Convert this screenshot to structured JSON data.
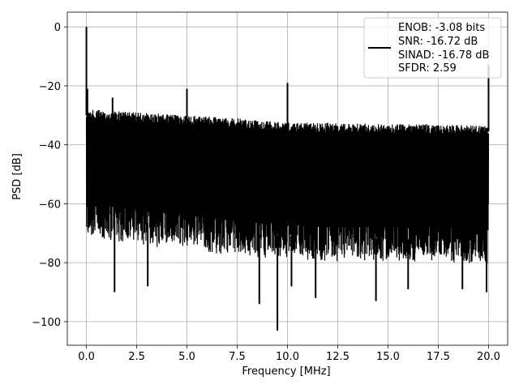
{
  "chart_data": {
    "type": "line",
    "title": "",
    "xlabel": "Frequency [MHz]",
    "ylabel": "PSD [dB]",
    "xlim": [
      -0.95,
      20.95
    ],
    "ylim": [
      -108,
      5
    ],
    "x_ticks": [
      0.0,
      2.5,
      5.0,
      7.5,
      10.0,
      12.5,
      15.0,
      17.5,
      20.0
    ],
    "x_tick_labels": [
      "0.0",
      "2.5",
      "5.0",
      "7.5",
      "10.0",
      "12.5",
      "15.0",
      "17.5",
      "20.0"
    ],
    "y_ticks": [
      0,
      -20,
      -40,
      -60,
      -80,
      -100
    ],
    "y_tick_labels": [
      "0",
      "−20",
      "−40",
      "−60",
      "−80",
      "−100"
    ],
    "grid": true,
    "legend_position": "top-right",
    "legend": {
      "lines": [
        "ENOB: -3.08 bits",
        "SNR: -16.72 dB",
        "SINAD: -16.78 dB",
        "SFDR: 2.59"
      ]
    },
    "series": [
      {
        "color": "#000000",
        "envelope": {
          "x": [
            0.0,
            2.5,
            5.0,
            7.5,
            10.0,
            12.5,
            15.0,
            17.5,
            20.0
          ],
          "upper": [
            -28,
            -29,
            -30,
            -31,
            -32.5,
            -32.5,
            -33,
            -33,
            -33.5
          ],
          "lower": [
            -68,
            -70,
            -72,
            -74,
            -75,
            -76,
            -76,
            -76,
            -77
          ]
        },
        "spurs": [
          {
            "x": 0.0,
            "y": 0
          },
          {
            "x": 0.05,
            "y": -21
          },
          {
            "x": 1.3,
            "y": -24
          },
          {
            "x": 5.0,
            "y": -21
          },
          {
            "x": 10.0,
            "y": -19
          },
          {
            "x": 20.0,
            "y": -13
          }
        ],
        "dips": [
          {
            "x": 1.4,
            "y": -90
          },
          {
            "x": 3.05,
            "y": -88
          },
          {
            "x": 8.6,
            "y": -94
          },
          {
            "x": 9.5,
            "y": -103
          },
          {
            "x": 10.2,
            "y": -88
          },
          {
            "x": 11.4,
            "y": -92
          },
          {
            "x": 14.4,
            "y": -93
          },
          {
            "x": 16.0,
            "y": -89
          },
          {
            "x": 18.7,
            "y": -89
          },
          {
            "x": 19.9,
            "y": -90
          }
        ]
      }
    ]
  }
}
